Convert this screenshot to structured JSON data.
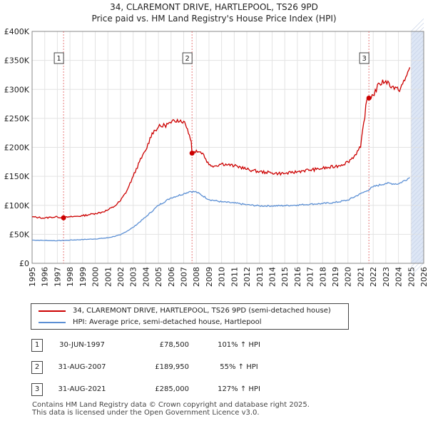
{
  "title_line1": "34, CLAREMONT DRIVE, HARTLEPOOL, TS26 9PD",
  "title_line2": "Price paid vs. HM Land Registry's House Price Index (HPI)",
  "colors": {
    "property": "#cc0000",
    "hpi": "#5b8fd4",
    "shade": "#dde6f5",
    "grid": "#e3e3e3"
  },
  "chart_data": {
    "type": "line",
    "title": "34, CLAREMONT DRIVE, HARTLEPOOL, TS26 9PD",
    "subtitle": "Price paid vs. HM Land Registry's House Price Index (HPI)",
    "xlim": [
      1995,
      2026
    ],
    "ylim": [
      0,
      400000
    ],
    "x_ticks": [
      1995,
      1996,
      1997,
      1998,
      1999,
      2000,
      2001,
      2002,
      2003,
      2004,
      2005,
      2006,
      2007,
      2008,
      2009,
      2010,
      2011,
      2012,
      2013,
      2014,
      2015,
      2016,
      2017,
      2018,
      2019,
      2020,
      2021,
      2022,
      2023,
      2024,
      2025,
      2026
    ],
    "x_tick_labels": [
      "1995",
      "1996",
      "1997",
      "1998",
      "1999",
      "2000",
      "2001",
      "2002",
      "2003",
      "2004",
      "2005",
      "2006",
      "2007",
      "2008",
      "2009",
      "2010",
      "2011",
      "2012",
      "2013",
      "2014",
      "2015",
      "2016",
      "2017",
      "2018",
      "2019",
      "2020",
      "2021",
      "2022",
      "2023",
      "2024",
      "2025",
      "2026"
    ],
    "y_ticks": [
      0,
      50000,
      100000,
      150000,
      200000,
      250000,
      300000,
      350000,
      400000
    ],
    "y_tick_labels": [
      "£0",
      "£50K",
      "£100K",
      "£150K",
      "£200K",
      "£250K",
      "£300K",
      "£350K",
      "£400K"
    ],
    "future_shade_from": 2025.0,
    "series": [
      {
        "name": "34, CLAREMONT DRIVE, HARTLEPOOL, TS26 9PD (semi-detached house)",
        "x": [
          1995.0,
          1995.5,
          1996.0,
          1996.5,
          1997.0,
          1997.49,
          1998.0,
          1998.5,
          1999.0,
          1999.5,
          2000.0,
          2000.5,
          2001.0,
          2001.5,
          2002.0,
          2002.5,
          2003.0,
          2003.5,
          2004.0,
          2004.5,
          2005.0,
          2005.5,
          2006.0,
          2006.5,
          2007.0,
          2007.3,
          2007.6,
          2007.66,
          2008.0,
          2008.5,
          2009.0,
          2009.5,
          2010.0,
          2010.5,
          2011.0,
          2011.5,
          2012.0,
          2012.5,
          2013.0,
          2013.5,
          2014.0,
          2014.5,
          2015.0,
          2015.5,
          2016.0,
          2016.5,
          2017.0,
          2017.5,
          2018.0,
          2018.5,
          2019.0,
          2019.5,
          2020.0,
          2020.5,
          2021.0,
          2021.5,
          2021.6,
          2021.66,
          2022.0,
          2022.5,
          2023.0,
          2023.5,
          2024.0,
          2024.5,
          2024.9
        ],
        "y": [
          80000,
          79000,
          78000,
          79500,
          80000,
          78500,
          80000,
          81000,
          82000,
          84000,
          86000,
          88000,
          92000,
          98000,
          108000,
          125000,
          150000,
          175000,
          195000,
          225000,
          235000,
          238000,
          242000,
          248000,
          245000,
          232000,
          210000,
          189950,
          195000,
          190000,
          170000,
          168000,
          172000,
          170000,
          168000,
          166000,
          162000,
          160000,
          158000,
          157000,
          156000,
          155000,
          155000,
          156000,
          158000,
          160000,
          161000,
          162000,
          164000,
          165000,
          167000,
          170000,
          175000,
          185000,
          200000,
          282000,
          283000,
          285000,
          290000,
          310000,
          315000,
          305000,
          298000,
          315000,
          338000
        ]
      },
      {
        "name": "HPI: Average price, semi-detached house, Hartlepool",
        "x": [
          1995.0,
          1996.0,
          1997.0,
          1998.0,
          1999.0,
          2000.0,
          2001.0,
          2002.0,
          2003.0,
          2004.0,
          2005.0,
          2006.0,
          2007.0,
          2007.5,
          2008.0,
          2009.0,
          2010.0,
          2011.0,
          2012.0,
          2013.0,
          2014.0,
          2015.0,
          2016.0,
          2017.0,
          2018.0,
          2019.0,
          2020.0,
          2021.0,
          2021.5,
          2022.0,
          2023.0,
          2024.0,
          2024.9
        ],
        "y": [
          40000,
          39500,
          39000,
          40000,
          41000,
          42000,
          44000,
          49000,
          62000,
          80000,
          100000,
          113000,
          120000,
          124000,
          123000,
          110000,
          106000,
          104000,
          101000,
          99000,
          99000,
          99500,
          100500,
          102000,
          103000,
          105000,
          109000,
          120000,
          125000,
          132000,
          138000,
          137000,
          148000
        ]
      }
    ],
    "sales": [
      {
        "label": "1",
        "x": 1997.49,
        "date": "30-JUN-1997",
        "price": 78500,
        "price_text": "£78,500",
        "hpi_text": "101% ↑ HPI"
      },
      {
        "label": "2",
        "x": 2007.66,
        "date": "31-AUG-2007",
        "price": 189950,
        "price_text": "£189,950",
        "hpi_text": "55% ↑ HPI"
      },
      {
        "label": "3",
        "x": 2021.66,
        "date": "31-AUG-2021",
        "price": 285000,
        "price_text": "£285,000",
        "hpi_text": "127% ↑ HPI"
      }
    ]
  },
  "legend": {
    "property": "34, CLAREMONT DRIVE, HARTLEPOOL, TS26 9PD (semi-detached house)",
    "hpi": "HPI: Average price, semi-detached house, Hartlepool"
  },
  "footer": {
    "line1": "Contains HM Land Registry data © Crown copyright and database right 2025.",
    "line2": "This data is licensed under the Open Government Licence v3.0."
  }
}
